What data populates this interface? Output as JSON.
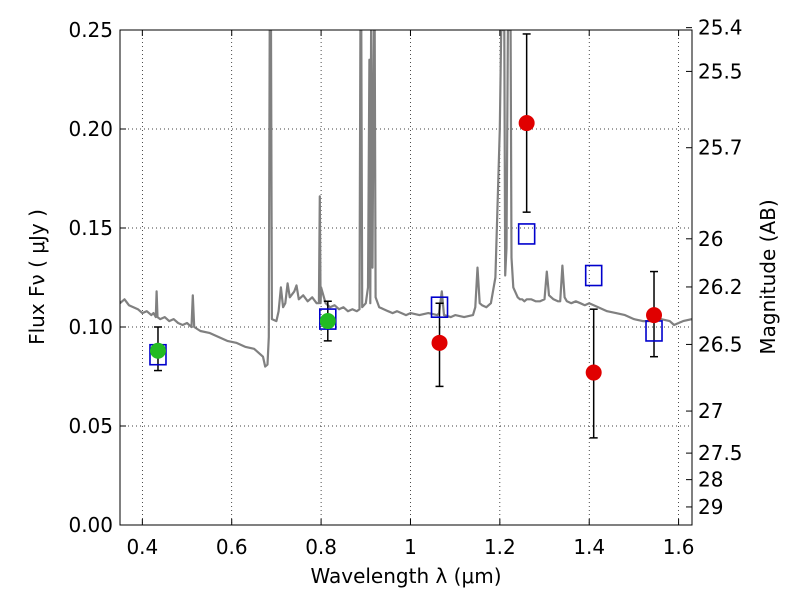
{
  "chart_data": {
    "type": "scatter",
    "title": "",
    "xlabel": "Wavelength  λ (μm)",
    "ylabel": "Flux  Fν  ( μJy )",
    "y2label": "Magnitude (AB)",
    "xlim": [
      0.35,
      1.63
    ],
    "ylim": [
      0,
      0.25
    ],
    "grid": true,
    "x_ticks": [
      {
        "value": 0.4,
        "label": "0.4"
      },
      {
        "value": 0.6,
        "label": "0.6"
      },
      {
        "value": 0.8,
        "label": "0.8"
      },
      {
        "value": 1.0,
        "label": "1"
      },
      {
        "value": 1.2,
        "label": "1.2"
      },
      {
        "value": 1.4,
        "label": "1.4"
      },
      {
        "value": 1.6,
        "label": "1.6"
      }
    ],
    "y_ticks": [
      {
        "value": 0.0,
        "label": "0.00"
      },
      {
        "value": 0.05,
        "label": "0.05"
      },
      {
        "value": 0.1,
        "label": "0.10"
      },
      {
        "value": 0.15,
        "label": "0.15"
      },
      {
        "value": 0.2,
        "label": "0.20"
      },
      {
        "value": 0.25,
        "label": "0.25"
      }
    ],
    "y2_ticks": [
      {
        "value": 25.4,
        "label": "25.4"
      },
      {
        "value": 25.5,
        "label": "25.5"
      },
      {
        "value": 25.7,
        "label": "25.7"
      },
      {
        "value": 26.0,
        "label": "26"
      },
      {
        "value": 26.2,
        "label": "26.2"
      },
      {
        "value": 26.5,
        "label": "26.5"
      },
      {
        "value": 27.0,
        "label": "27"
      },
      {
        "value": 27.5,
        "label": "27.5"
      },
      {
        "value": 28.0,
        "label": "28"
      },
      {
        "value": 29.0,
        "label": "29"
      }
    ],
    "series": [
      {
        "kind": "spectrum",
        "color": "#808080",
        "points": [
          [
            0.35,
            0.112
          ],
          [
            0.36,
            0.114
          ],
          [
            0.37,
            0.111
          ],
          [
            0.38,
            0.11
          ],
          [
            0.39,
            0.109
          ],
          [
            0.4,
            0.107
          ],
          [
            0.41,
            0.108
          ],
          [
            0.42,
            0.106
          ],
          [
            0.425,
            0.107
          ],
          [
            0.43,
            0.105
          ],
          [
            0.432,
            0.118
          ],
          [
            0.434,
            0.105
          ],
          [
            0.44,
            0.104
          ],
          [
            0.45,
            0.105
          ],
          [
            0.46,
            0.103
          ],
          [
            0.47,
            0.104
          ],
          [
            0.48,
            0.102
          ],
          [
            0.49,
            0.101
          ],
          [
            0.5,
            0.102
          ],
          [
            0.51,
            0.1
          ],
          [
            0.513,
            0.116
          ],
          [
            0.516,
            0.1
          ],
          [
            0.53,
            0.098
          ],
          [
            0.55,
            0.097
          ],
          [
            0.57,
            0.095
          ],
          [
            0.59,
            0.093
          ],
          [
            0.61,
            0.092
          ],
          [
            0.63,
            0.09
          ],
          [
            0.65,
            0.089
          ],
          [
            0.66,
            0.087
          ],
          [
            0.67,
            0.085
          ],
          [
            0.675,
            0.08
          ],
          [
            0.68,
            0.081
          ],
          [
            0.683,
            0.095
          ],
          [
            0.685,
            0.25
          ],
          [
            0.688,
            0.25
          ],
          [
            0.69,
            0.104
          ],
          [
            0.7,
            0.103
          ],
          [
            0.705,
            0.108
          ],
          [
            0.71,
            0.12
          ],
          [
            0.715,
            0.11
          ],
          [
            0.72,
            0.112
          ],
          [
            0.725,
            0.122
          ],
          [
            0.73,
            0.115
          ],
          [
            0.74,
            0.118
          ],
          [
            0.745,
            0.121
          ],
          [
            0.75,
            0.114
          ],
          [
            0.76,
            0.116
          ],
          [
            0.77,
            0.113
          ],
          [
            0.78,
            0.115
          ],
          [
            0.79,
            0.112
          ],
          [
            0.795,
            0.112
          ],
          [
            0.797,
            0.166
          ],
          [
            0.799,
            0.112
          ],
          [
            0.8,
            0.12
          ],
          [
            0.81,
            0.112
          ],
          [
            0.82,
            0.11
          ],
          [
            0.83,
            0.111
          ],
          [
            0.84,
            0.109
          ],
          [
            0.85,
            0.11
          ],
          [
            0.86,
            0.108
          ],
          [
            0.87,
            0.109
          ],
          [
            0.88,
            0.108
          ],
          [
            0.886,
            0.109
          ],
          [
            0.888,
            0.25
          ],
          [
            0.89,
            0.25
          ],
          [
            0.892,
            0.11
          ],
          [
            0.9,
            0.112
          ],
          [
            0.905,
            0.12
          ],
          [
            0.908,
            0.235
          ],
          [
            0.91,
            0.112
          ],
          [
            0.912,
            0.25
          ],
          [
            0.915,
            0.13
          ],
          [
            0.918,
            0.25
          ],
          [
            0.92,
            0.25
          ],
          [
            0.922,
            0.115
          ],
          [
            0.93,
            0.11
          ],
          [
            0.94,
            0.109
          ],
          [
            0.95,
            0.108
          ],
          [
            0.96,
            0.107
          ],
          [
            0.97,
            0.108
          ],
          [
            0.98,
            0.107
          ],
          [
            0.99,
            0.106
          ],
          [
            1.0,
            0.107
          ],
          [
            1.02,
            0.106
          ],
          [
            1.04,
            0.107
          ],
          [
            1.06,
            0.106
          ],
          [
            1.064,
            0.107
          ],
          [
            1.07,
            0.118
          ],
          [
            1.075,
            0.106
          ],
          [
            1.09,
            0.105
          ],
          [
            1.1,
            0.106
          ],
          [
            1.12,
            0.105
          ],
          [
            1.14,
            0.106
          ],
          [
            1.145,
            0.11
          ],
          [
            1.15,
            0.13
          ],
          [
            1.155,
            0.112
          ],
          [
            1.16,
            0.111
          ],
          [
            1.17,
            0.11
          ],
          [
            1.18,
            0.112
          ],
          [
            1.19,
            0.125
          ],
          [
            1.2,
            0.2
          ],
          [
            1.203,
            0.25
          ],
          [
            1.21,
            0.25
          ],
          [
            1.212,
            0.126
          ],
          [
            1.215,
            0.14
          ],
          [
            1.218,
            0.25
          ],
          [
            1.224,
            0.25
          ],
          [
            1.226,
            0.135
          ],
          [
            1.23,
            0.12
          ],
          [
            1.24,
            0.115
          ],
          [
            1.245,
            0.114
          ],
          [
            1.25,
            0.114
          ],
          [
            1.255,
            0.113
          ],
          [
            1.26,
            0.114
          ],
          [
            1.27,
            0.114
          ],
          [
            1.28,
            0.113
          ],
          [
            1.29,
            0.113
          ],
          [
            1.3,
            0.114
          ],
          [
            1.305,
            0.128
          ],
          [
            1.31,
            0.116
          ],
          [
            1.32,
            0.114
          ],
          [
            1.33,
            0.113
          ],
          [
            1.335,
            0.113
          ],
          [
            1.34,
            0.131
          ],
          [
            1.345,
            0.115
          ],
          [
            1.35,
            0.113
          ],
          [
            1.36,
            0.112
          ],
          [
            1.37,
            0.113
          ],
          [
            1.38,
            0.112
          ],
          [
            1.39,
            0.111
          ],
          [
            1.4,
            0.112
          ],
          [
            1.42,
            0.11
          ],
          [
            1.44,
            0.108
          ],
          [
            1.46,
            0.107
          ],
          [
            1.48,
            0.106
          ],
          [
            1.5,
            0.104
          ],
          [
            1.52,
            0.103
          ],
          [
            1.54,
            0.103
          ],
          [
            1.56,
            0.104
          ],
          [
            1.58,
            0.103
          ],
          [
            1.59,
            0.101
          ],
          [
            1.6,
            0.102
          ],
          [
            1.61,
            0.103
          ],
          [
            1.63,
            0.104
          ]
        ]
      },
      {
        "kind": "model",
        "marker": "open-square",
        "color": "#0000cc",
        "x": [
          0.435,
          0.815,
          1.065,
          1.26,
          1.41,
          1.545
        ],
        "y": [
          0.086,
          0.104,
          0.11,
          0.147,
          0.126,
          0.098
        ]
      },
      {
        "kind": "observed",
        "marker": "filled-circle",
        "color": "#e00000",
        "x": [
          1.065,
          1.26,
          1.41,
          1.545
        ],
        "y": [
          0.092,
          0.203,
          0.077,
          0.106
        ],
        "err_low": [
          0.07,
          0.158,
          0.044,
          0.085
        ],
        "err_high": [
          0.112,
          0.248,
          0.109,
          0.128
        ]
      },
      {
        "kind": "observed",
        "marker": "filled-circle",
        "color": "#22bb22",
        "x": [
          0.435,
          0.815
        ],
        "y": [
          0.088,
          0.103
        ],
        "err_low": [
          0.078,
          0.093
        ],
        "err_high": [
          0.1,
          0.113
        ]
      }
    ]
  }
}
